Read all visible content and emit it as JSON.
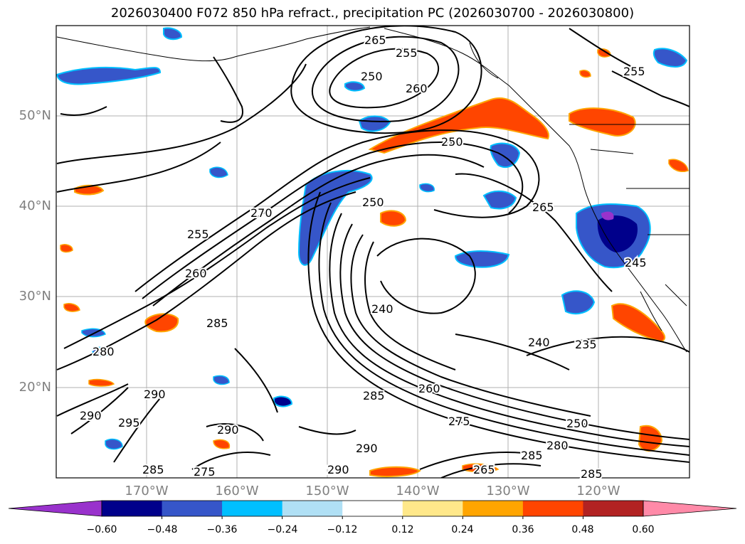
{
  "title": "2026030400 F072 850 hPa refract., precipitation PC (2026030700 - 2026030800)",
  "lat_labels": [
    "50°N",
    "40°N",
    "30°N",
    "20°N"
  ],
  "lon_labels": [
    "170°W",
    "160°W",
    "150°W",
    "140°W",
    "130°W",
    "120°W"
  ],
  "contour_labels": [
    "265",
    "255",
    "250",
    "260",
    "250",
    "270",
    "255",
    "260",
    "285",
    "280",
    "290",
    "295",
    "290",
    "275",
    "285",
    "290",
    "240",
    "250",
    "265",
    "245",
    "240",
    "235",
    "285",
    "260",
    "275",
    "250",
    "280",
    "285",
    "265",
    "285",
    "290",
    "290",
    "255"
  ],
  "colorbar": {
    "ticks": [
      "−0.60",
      "−0.48",
      "−0.36",
      "−0.24",
      "−0.12",
      "0.12",
      "0.24",
      "0.36",
      "0.48",
      "0.60"
    ],
    "colors": [
      "#9932cc",
      "#00008b",
      "#3656c9",
      "#00bfff",
      "#b0e0f5",
      "#ffffff",
      "#ffe88a",
      "#ffa500",
      "#ff4500",
      "#b22222",
      "#ff8aa8"
    ]
  },
  "colors": {
    "precip_positive_strong": "#ff4500",
    "precip_positive_mid": "#ffa500",
    "precip_positive_weak": "#ffe88a",
    "precip_negative_strong": "#00008b",
    "precip_negative_mid": "#3656c9",
    "precip_negative_weak": "#00bfff"
  }
}
